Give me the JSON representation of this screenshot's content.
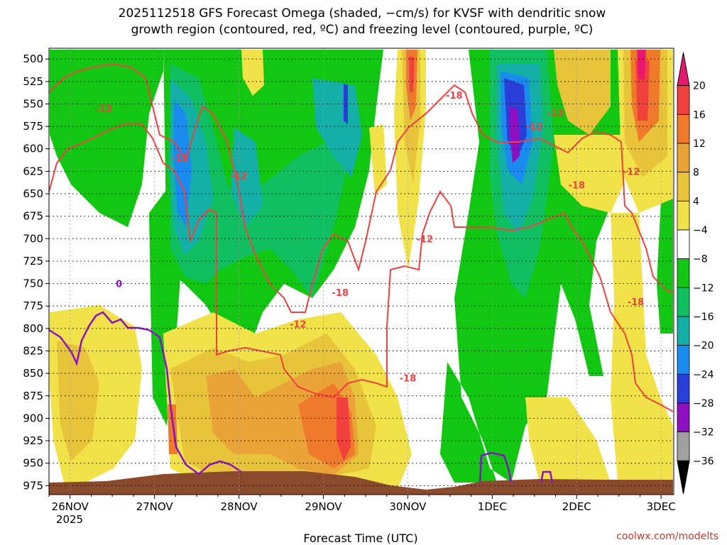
{
  "chart_data": {
    "type": "heatmap",
    "title_line1": "2025112518 GFS Forecast Omega (shaded, −cm/s) for KVSF with dendritic snow",
    "title_line2": "growth region (contoured, red, ºC) and freezing level (contoured, purple, ºC)",
    "xlabel": "Forecast Time (UTC)",
    "credit": "coolwx.com/modelts",
    "x_ticks": [
      "26NOV",
      "27NOV",
      "28NOV",
      "29NOV",
      "30NOV",
      "1DEC",
      "2DEC",
      "3DEC"
    ],
    "x_year": "2025",
    "x_range_days": [
      -0.25,
      7.15
    ],
    "y_ticks": [
      500,
      525,
      550,
      575,
      600,
      625,
      650,
      675,
      700,
      725,
      750,
      775,
      800,
      825,
      850,
      875,
      900,
      925,
      950,
      975
    ],
    "y_range": [
      488,
      985
    ],
    "colorbar": {
      "labels": [
        "20",
        "16",
        "12",
        "8",
        "4",
        "−4",
        "−8",
        "−12",
        "−16",
        "−20",
        "−24",
        "−28",
        "−32",
        "−36"
      ],
      "colors": [
        "#e8186e",
        "#f0413c",
        "#ef7a2c",
        "#e9a336",
        "#e8c43a",
        "#f1e24a",
        "#ffffff",
        "#12c712",
        "#10c060",
        "#14b0a8",
        "#1a8cf0",
        "#2a3ed8",
        "#8f10c0",
        "#a0a0a0",
        "#000000"
      ]
    },
    "contour_labels": {
      "dgz_red": [
        "-12",
        "-18",
        "-12",
        "-18",
        "-12",
        "-18",
        "-12",
        "-18",
        "-12",
        "-18",
        "-12",
        "-18",
        "-12"
      ],
      "freezing_purple": [
        "0"
      ]
    },
    "colors": {
      "dgz": "#f04040",
      "freezing": "#8a10c8",
      "terrain": "#8b4a2b"
    }
  }
}
